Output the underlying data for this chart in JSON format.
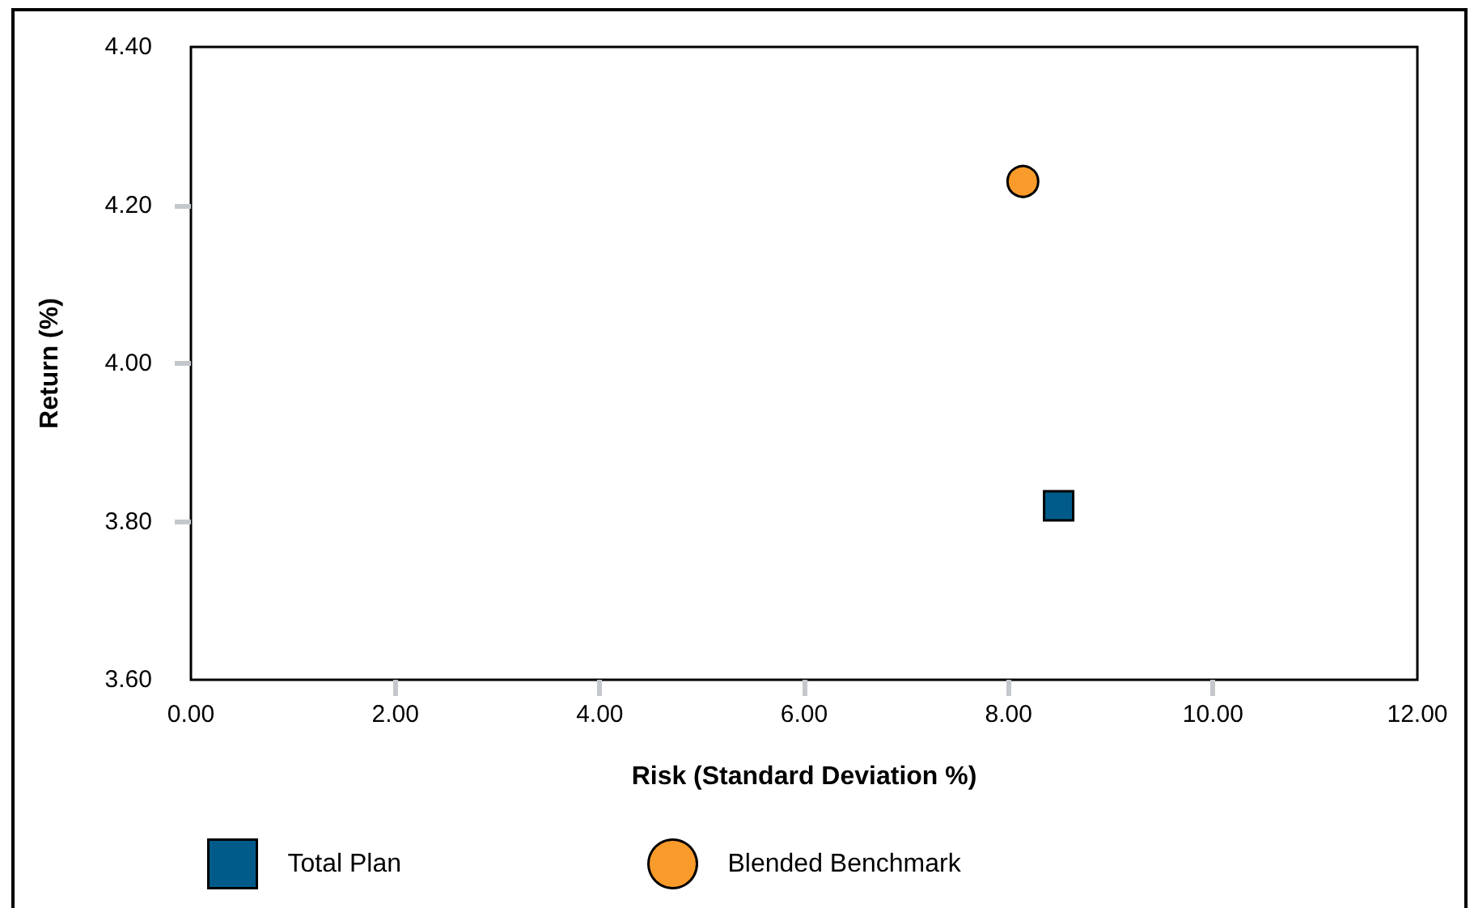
{
  "chart_data": {
    "type": "scatter",
    "xlabel": "Risk (Standard Deviation %)",
    "ylabel": "Return (%)",
    "series": [
      {
        "name": "Total Plan",
        "color": "#005b8a",
        "x": [
          8.49
        ],
        "values": [
          3.82
        ],
        "marker": "square"
      },
      {
        "name": "Blended Benchmark",
        "color": "#f99b2a",
        "x": [
          8.14
        ],
        "values": [
          4.23
        ],
        "marker": "circle"
      }
    ],
    "xlim": [
      0,
      12
    ],
    "xticks": [
      {
        "value": 0,
        "label": "0.00"
      },
      {
        "value": 2,
        "label": "2.00"
      },
      {
        "value": 4,
        "label": "4.00"
      },
      {
        "value": 6,
        "label": "6.00"
      },
      {
        "value": 8,
        "label": "8.00"
      },
      {
        "value": 10,
        "label": "10.00"
      },
      {
        "value": 12,
        "label": "12.00"
      }
    ],
    "ylim": [
      3.6,
      4.4
    ],
    "yticks": [
      {
        "value": 3.6,
        "label": "3.60"
      },
      {
        "value": 3.8,
        "label": "3.80"
      },
      {
        "value": 4.0,
        "label": "4.00"
      },
      {
        "value": 4.2,
        "label": "4.20"
      },
      {
        "value": 4.4,
        "label": "4.40"
      }
    ],
    "grid": false,
    "legend": "bottom left"
  }
}
